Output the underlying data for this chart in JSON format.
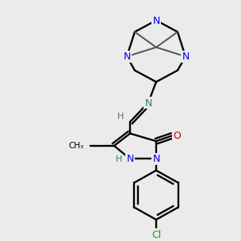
{
  "bg_color": "#ebebeb",
  "figsize": [
    3.0,
    3.0
  ],
  "dpi": 100,
  "lw": 1.7
}
